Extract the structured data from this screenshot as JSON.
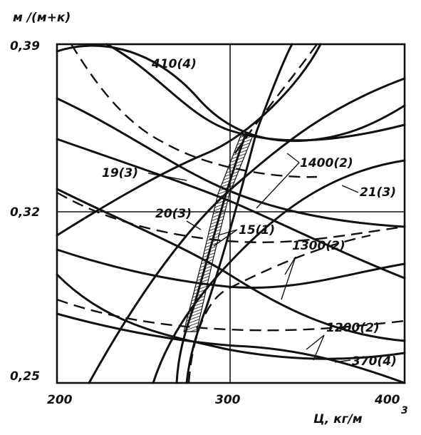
{
  "chart_data": {
    "type": "line",
    "xlabel": "Ц, кг/м",
    "xlabel_sup": "3",
    "ylabel": "м /(м+к)",
    "x_ticks": [
      "200",
      "300",
      "400"
    ],
    "y_ticks": [
      "0,39",
      "0,32",
      "0,25"
    ],
    "xlim": [
      200,
      400
    ],
    "ylim": [
      0.25,
      0.39
    ],
    "grid": "lines at x=300 and y=0.32",
    "series": [
      {
        "name": "410(4)",
        "style": "solid",
        "points": [
          [
            204,
            0.385
          ],
          [
            230,
            0.388
          ],
          [
            260,
            0.382
          ],
          [
            290,
            0.366
          ],
          [
            310,
            0.357
          ],
          [
            340,
            0.355
          ],
          [
            370,
            0.362
          ],
          [
            400,
            0.376
          ]
        ]
      },
      {
        "name": "370(4)",
        "style": "solid",
        "points": [
          [
            204,
            0.297
          ],
          [
            230,
            0.278
          ],
          [
            260,
            0.265
          ],
          [
            290,
            0.258
          ],
          [
            320,
            0.255
          ],
          [
            350,
            0.257
          ],
          [
            380,
            0.262
          ],
          [
            400,
            0.268
          ]
        ]
      },
      {
        "name": "1400(2)",
        "style": "solid",
        "points": [
          [
            205,
            0.333
          ],
          [
            230,
            0.333
          ],
          [
            260,
            0.325
          ],
          [
            290,
            0.317
          ],
          [
            310,
            0.311
          ],
          [
            340,
            0.302
          ],
          [
            370,
            0.297
          ],
          [
            400,
            0.298
          ]
        ]
      },
      {
        "name": "1300(2)",
        "style": "solid",
        "points": [
          [
            204,
            0.31
          ],
          [
            230,
            0.298
          ],
          [
            260,
            0.286
          ],
          [
            290,
            0.278
          ],
          [
            320,
            0.272
          ],
          [
            350,
            0.27
          ],
          [
            380,
            0.272
          ],
          [
            400,
            0.276
          ]
        ]
      },
      {
        "name": "1200(2)",
        "style": "solid",
        "points": [
          [
            204,
            0.287
          ],
          [
            230,
            0.275
          ],
          [
            260,
            0.268
          ],
          [
            290,
            0.264
          ],
          [
            320,
            0.261
          ],
          [
            350,
            0.26
          ],
          [
            380,
            0.262
          ],
          [
            400,
            0.268
          ]
        ]
      },
      {
        "name": "19(3)",
        "style": "dashed",
        "points": [
          [
            216,
            0.379
          ],
          [
            240,
            0.362
          ],
          [
            270,
            0.347
          ],
          [
            300,
            0.338
          ],
          [
            330,
            0.333
          ],
          [
            360,
            0.33
          ],
          [
            400,
            0.328
          ]
        ]
      },
      {
        "name": "20(3)",
        "style": "dashed",
        "points": [
          [
            205,
            0.325
          ],
          [
            240,
            0.317
          ],
          [
            270,
            0.31
          ],
          [
            300,
            0.306
          ],
          [
            340,
            0.302
          ],
          [
            380,
            0.304
          ],
          [
            400,
            0.307
          ]
        ]
      },
      {
        "name": "21(3)",
        "style": "dashed",
        "points": [
          [
            210,
            0.283
          ],
          [
            240,
            0.276
          ],
          [
            270,
            0.272
          ],
          [
            300,
            0.272
          ],
          [
            330,
            0.271
          ],
          [
            360,
            0.274
          ],
          [
            390,
            0.282
          ]
        ]
      },
      {
        "name": "15(1)",
        "style": "hatched-band",
        "points": [
          [
            273,
            0.265
          ],
          [
            280,
            0.282
          ],
          [
            287,
            0.3
          ],
          [
            294,
            0.318
          ],
          [
            302,
            0.336
          ],
          [
            310,
            0.352
          ]
        ]
      }
    ],
    "labels": [
      "410(4)",
      "19(3)",
      "1400(2)",
      "21(3)",
      "20(3)",
      "15(1)",
      "1300(2)",
      "1200(2)",
      "370(4)"
    ]
  }
}
